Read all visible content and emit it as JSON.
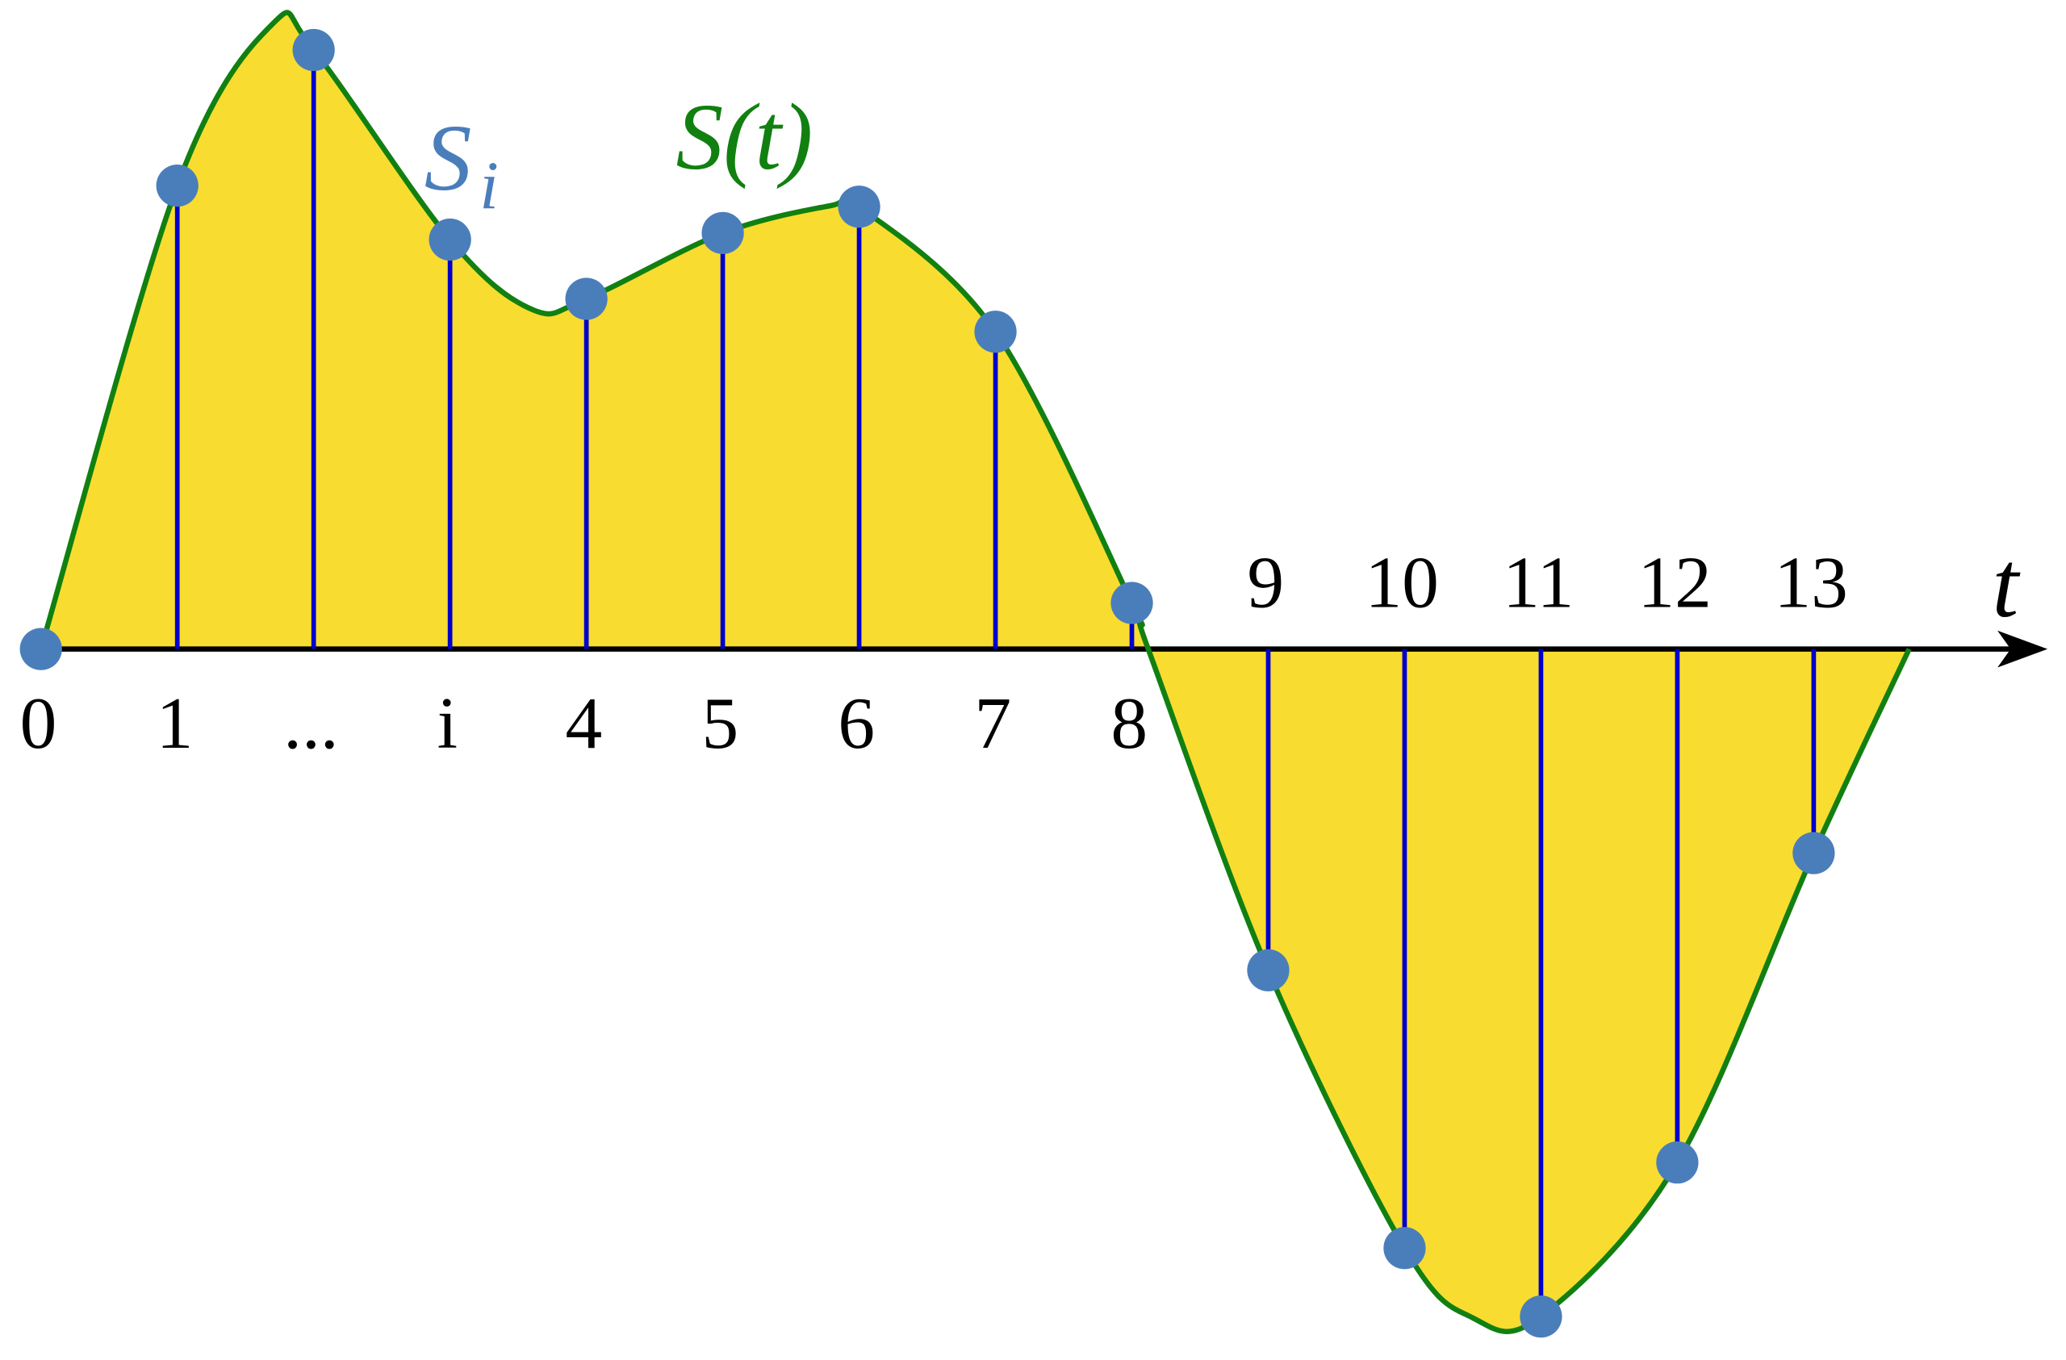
{
  "chart_data": {
    "type": "stem",
    "categories": [
      "0",
      "1",
      "...",
      "i",
      "4",
      "5",
      "6",
      "7",
      "8",
      "9",
      "10",
      "11",
      "12",
      "13"
    ],
    "values": [
      0,
      3.52,
      4.55,
      3.11,
      2.66,
      3.16,
      3.36,
      2.41,
      0.35,
      -2.44,
      -4.55,
      -5.07,
      -3.9,
      -1.55
    ],
    "xlim": [
      -0.3,
      14.85
    ],
    "ylim": [
      -5.4,
      4.93
    ],
    "stem_color": "#0000cc",
    "marker_color": "#4a7ebb",
    "curve": {
      "name": "S(t)",
      "color": "#118011",
      "fill": "#f9dc30",
      "x": [
        0,
        1,
        1.7,
        2,
        3,
        3.6,
        4,
        5,
        5.8,
        6,
        7,
        8,
        8.12,
        9,
        10,
        10.5,
        11,
        12,
        13,
        13.7
      ],
      "values": [
        0,
        3.52,
        4.75,
        4.55,
        3.11,
        2.58,
        2.66,
        3.16,
        3.37,
        3.36,
        2.41,
        0.35,
        0,
        -2.44,
        -4.55,
        -5.08,
        -5.07,
        -3.9,
        -1.55,
        0
      ]
    },
    "sample_label": {
      "text": "S",
      "subscript": "i"
    },
    "x_axis_label": "t"
  }
}
